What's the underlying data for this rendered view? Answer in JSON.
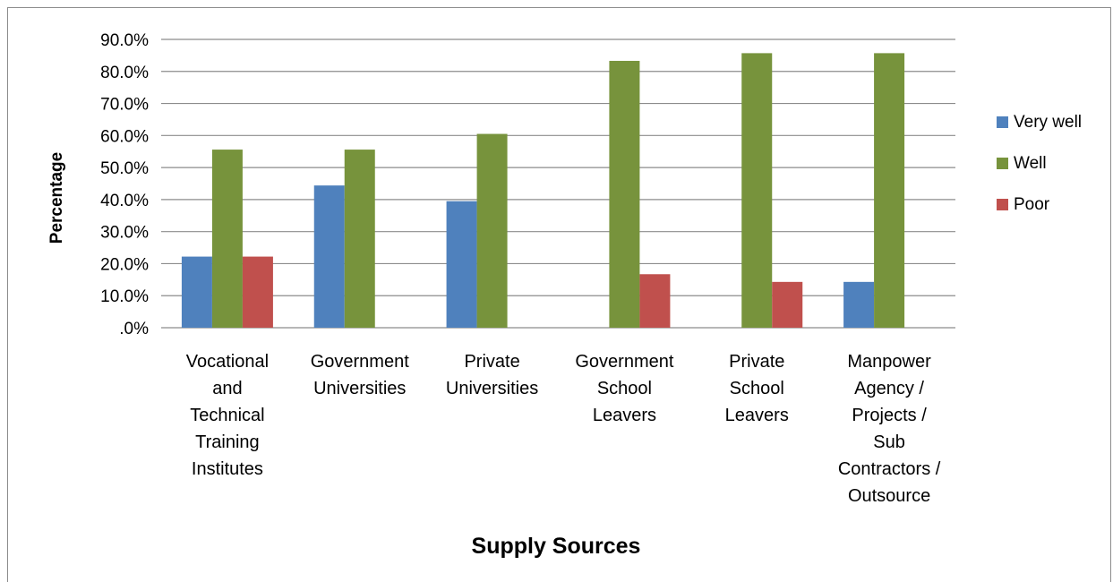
{
  "chart_data": {
    "type": "bar",
    "title": "",
    "xlabel": "Supply Sources",
    "ylabel": "Percentage",
    "ylim": [
      0,
      90
    ],
    "yticks": [
      ".0%",
      "10.0%",
      "20.0%",
      "30.0%",
      "40.0%",
      "50.0%",
      "60.0%",
      "70.0%",
      "80.0%",
      "90.0%"
    ],
    "grid": true,
    "legend_position": "right",
    "categories": [
      "Vocational and Technical Training Institutes",
      "Government Universities",
      "Private Universities",
      "Government School Leavers",
      "Private School Leavers",
      "Manpower Agency / Projects / Sub Contractors / Outsource"
    ],
    "category_lines": [
      [
        "Vocational",
        "and",
        "Technical",
        "Training",
        "Institutes"
      ],
      [
        "Government",
        "Universities"
      ],
      [
        "Private",
        "Universities"
      ],
      [
        "Government",
        "School",
        "Leavers"
      ],
      [
        "Private",
        "School",
        "Leavers"
      ],
      [
        "Manpower",
        "Agency /",
        "Projects /",
        "Sub",
        "Contractors /",
        "Outsource"
      ]
    ],
    "series": [
      {
        "name": "Very well",
        "color": "#4f81bd",
        "values": [
          22.2,
          44.4,
          39.5,
          0,
          0,
          14.3
        ]
      },
      {
        "name": "Well",
        "color": "#77933c",
        "values": [
          55.6,
          55.6,
          60.5,
          83.3,
          85.7,
          85.7
        ]
      },
      {
        "name": "Poor",
        "color": "#c0504d",
        "values": [
          22.2,
          0,
          0,
          16.7,
          14.3,
          0
        ]
      }
    ]
  }
}
